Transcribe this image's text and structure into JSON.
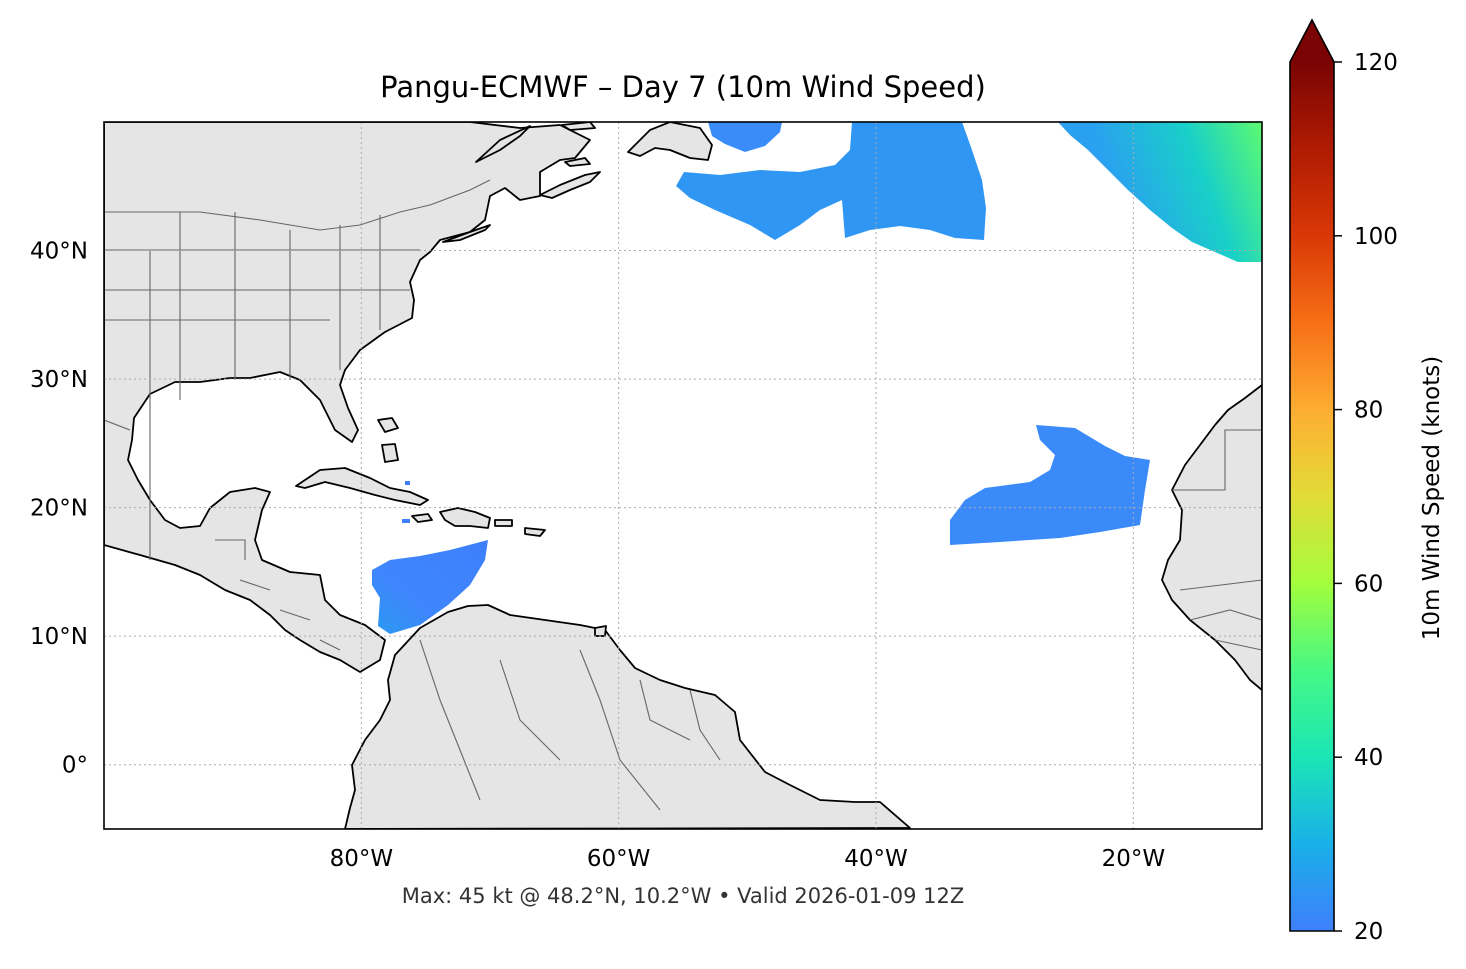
{
  "title": "Pangu-ECMWF – Day 7 (10m Wind Speed)",
  "footer": "Max: 45 kt @ 48.2°N, 10.2°W • Valid 2026-01-09 12Z",
  "map": {
    "lon_range": [
      -100,
      -10
    ],
    "lat_range": [
      -5,
      50
    ],
    "lon_ticks": [
      {
        "value": -80,
        "label": "80°W"
      },
      {
        "value": -60,
        "label": "60°W"
      },
      {
        "value": -40,
        "label": "40°W"
      },
      {
        "value": -20,
        "label": "20°W"
      }
    ],
    "lat_ticks": [
      {
        "value": 40,
        "label": "40°N"
      },
      {
        "value": 30,
        "label": "30°N"
      },
      {
        "value": 20,
        "label": "20°N"
      },
      {
        "value": 10,
        "label": "10°N"
      },
      {
        "value": 0,
        "label": "0°"
      }
    ],
    "gridlines": "dotted",
    "land_color": "#e5e5e5",
    "coast_color": "#000000",
    "border_color": "#666666"
  },
  "colorbar": {
    "label": "10m Wind Speed (knots)",
    "min": 20,
    "max": 120,
    "ticks": [
      20,
      40,
      60,
      80,
      100,
      120
    ],
    "extend": "max",
    "colormap": [
      "#3e7ffc",
      "#1ab0e8",
      "#1be5b5",
      "#46f884",
      "#a3fd3d",
      "#e2dc38",
      "#fead32",
      "#f76f16",
      "#d93806",
      "#b01b03",
      "#7a0403"
    ]
  },
  "wind_regions": [
    {
      "name": "north-atlantic-40w",
      "speed_kt": 24
    },
    {
      "name": "northeast-atlantic",
      "speed_kt": 38
    },
    {
      "name": "central-atlantic",
      "speed_kt": 22
    },
    {
      "name": "caribbean-sea",
      "speed_kt": 24
    }
  ]
}
